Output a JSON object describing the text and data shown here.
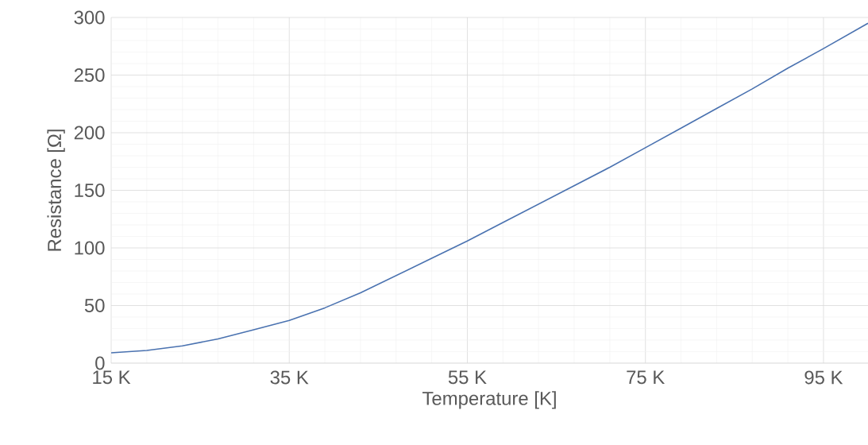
{
  "chart_data": {
    "type": "line",
    "xlabel": "Temperature [K]",
    "ylabel": "Resistance [Ω]",
    "x": [
      15,
      19,
      23,
      27,
      31,
      35,
      39,
      43,
      47,
      51,
      55,
      59,
      63,
      67,
      71,
      75,
      79,
      83,
      87,
      91,
      95,
      100
    ],
    "series": [
      {
        "color": "#4a72b0",
        "values": [
          9,
          11,
          15,
          21,
          29,
          37,
          48,
          61,
          76,
          91,
          106,
          122,
          138,
          154,
          170,
          187,
          204,
          221,
          238,
          256,
          273,
          295
        ]
      }
    ],
    "xlim": [
      15,
      100
    ],
    "ylim": [
      0,
      300
    ],
    "xticks": [
      {
        "value": 15,
        "label": "15 K"
      },
      {
        "value": 35,
        "label": "35 K"
      },
      {
        "value": 55,
        "label": "55 K"
      },
      {
        "value": 75,
        "label": "75 K"
      },
      {
        "value": 95,
        "label": "95 K"
      }
    ],
    "yticks": [
      0,
      50,
      100,
      150,
      200,
      250,
      300
    ],
    "grid": true,
    "marker": "none",
    "line_style": "solid"
  }
}
